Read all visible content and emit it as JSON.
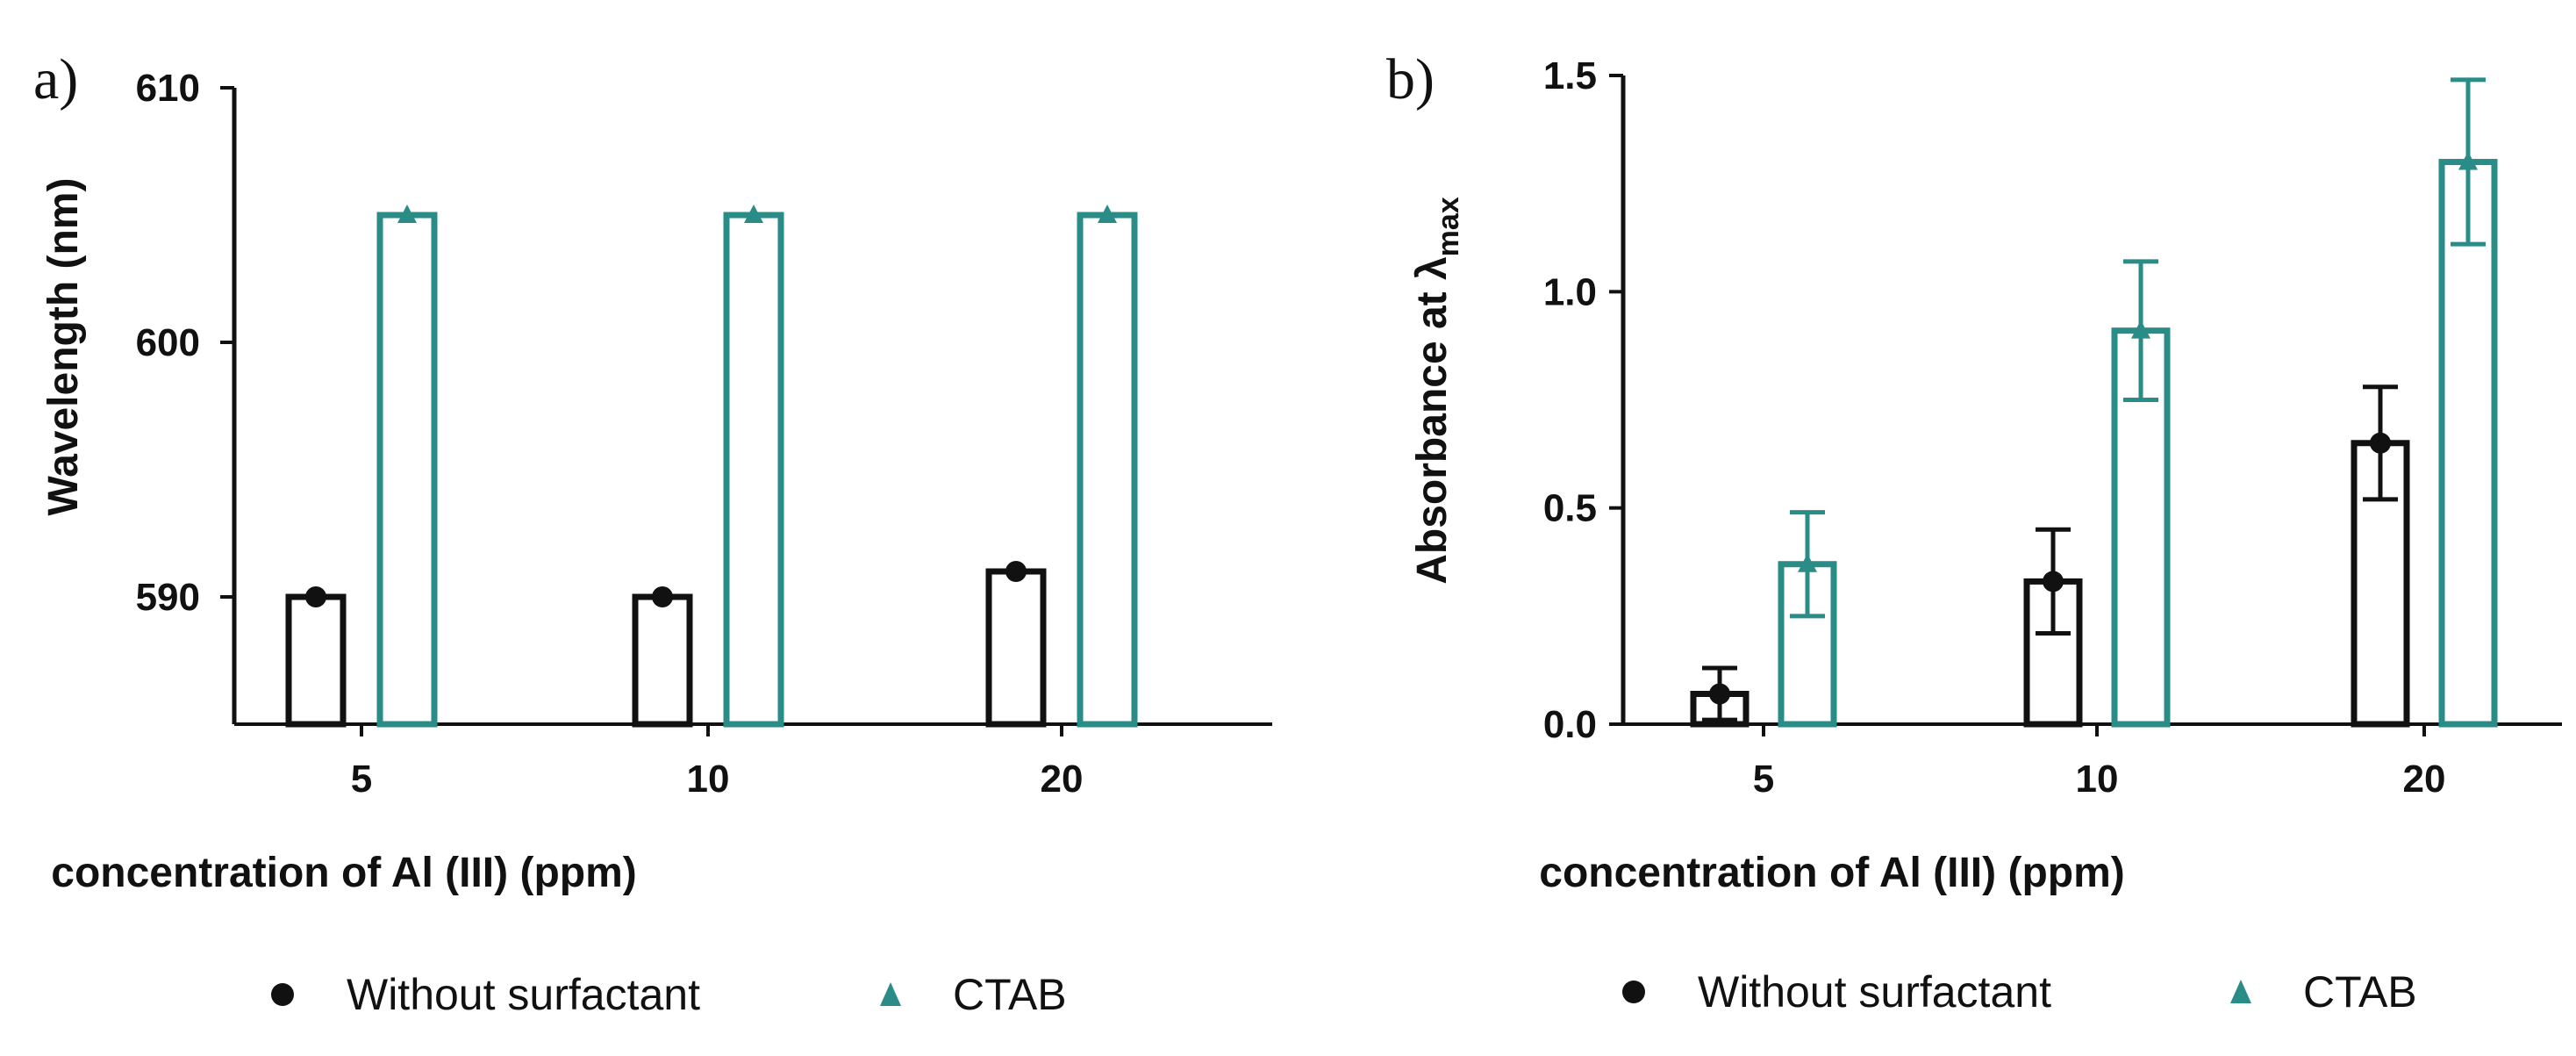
{
  "colors": {
    "without": "#111111",
    "ctab": "#2a8c87",
    "axis": "#111111"
  },
  "chart_data": [
    {
      "panel": "a)",
      "type": "bar",
      "title": "",
      "xlabel": "concentration of Al (III) (ppm)",
      "ylabel": "Wavelength (nm)",
      "categories": [
        "5",
        "10",
        "20"
      ],
      "ylim": [
        585,
        610
      ],
      "yticks": [
        590,
        600,
        610
      ],
      "grid": false,
      "series": [
        {
          "name": "Without surfactant",
          "marker": "circle",
          "values": [
            590,
            590,
            591
          ],
          "errors": [
            0,
            0,
            0
          ]
        },
        {
          "name": "CTAB",
          "marker": "triangle",
          "values": [
            605,
            605,
            605
          ],
          "errors": [
            0,
            0,
            0
          ]
        }
      ],
      "legend": {
        "placement": "bottom",
        "entries": [
          "Without surfactant",
          "CTAB"
        ]
      }
    },
    {
      "panel": "b)",
      "type": "bar",
      "title": "",
      "xlabel": "concentration of Al (III) (ppm)",
      "ylabel": "Absorbance at λ",
      "ylabel_sub": "max",
      "categories": [
        "5",
        "10",
        "20"
      ],
      "ylim": [
        0,
        1.5
      ],
      "yticks": [
        "0.0",
        "0.5",
        "1.0",
        "1.5"
      ],
      "grid": false,
      "series": [
        {
          "name": "Without surfactant",
          "marker": "circle",
          "values": [
            0.07,
            0.33,
            0.65
          ],
          "errors": [
            0.06,
            0.12,
            0.13
          ]
        },
        {
          "name": "CTAB",
          "marker": "triangle",
          "values": [
            0.37,
            0.91,
            1.3
          ],
          "errors": [
            0.12,
            0.16,
            0.19
          ]
        }
      ],
      "legend": {
        "placement": "bottom",
        "entries": [
          "Without surfactant",
          "CTAB"
        ]
      }
    }
  ]
}
